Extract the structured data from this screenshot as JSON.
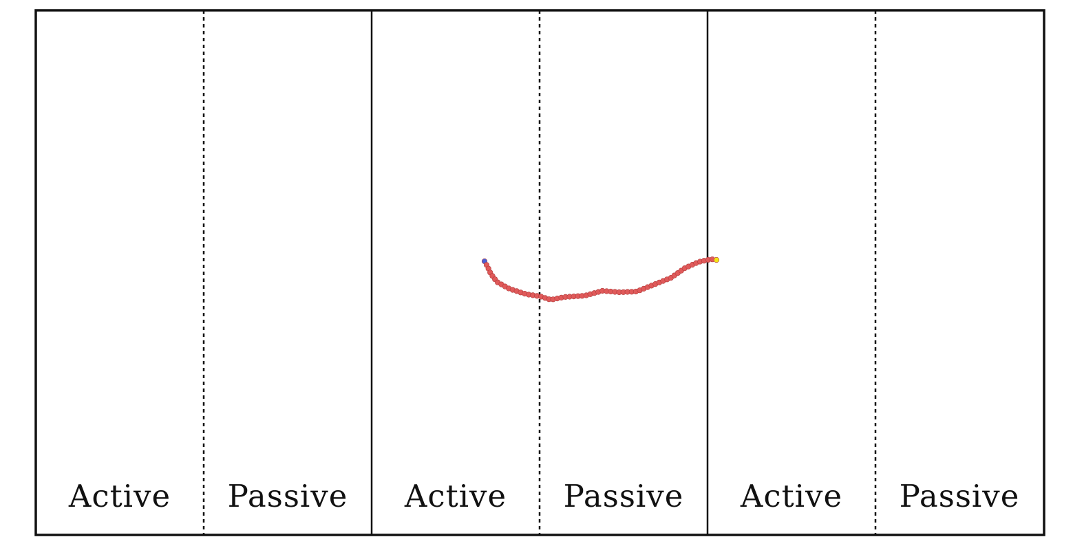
{
  "figure": {
    "zones": [
      {
        "label": "Active"
      },
      {
        "label": "Passive"
      },
      {
        "label": "Active"
      },
      {
        "label": "Passive"
      },
      {
        "label": "Active"
      },
      {
        "label": "Passive"
      }
    ],
    "polymer": {
      "bead_color": "#e05a5a",
      "head_color": "#4a5fd6",
      "tail_color": "#f2e416",
      "bond_color": "#c94a4a"
    },
    "colors": {
      "frame": "#111111",
      "background": "#ffffff"
    }
  }
}
